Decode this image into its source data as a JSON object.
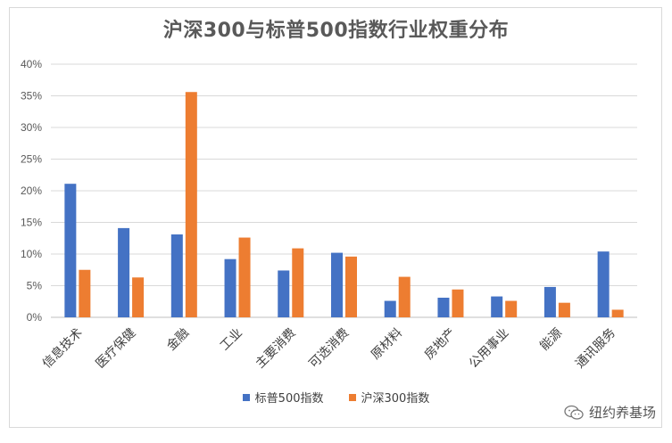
{
  "chart_data": {
    "type": "bar",
    "title": "沪深300与标普500指数行业权重分布",
    "categories": [
      "信息技术",
      "医疗保健",
      "金融",
      "工业",
      "主要消费",
      "可选消费",
      "原材料",
      "房地产",
      "公用事业",
      "能源",
      "通讯服务"
    ],
    "series": [
      {
        "name": "标普500指数",
        "color": "#4472c4",
        "values": [
          21.1,
          14.1,
          13.1,
          9.2,
          7.4,
          10.2,
          2.6,
          3.1,
          3.3,
          4.8,
          10.4
        ]
      },
      {
        "name": "沪深300指数",
        "color": "#ed7d31",
        "values": [
          7.5,
          6.3,
          35.6,
          12.6,
          10.9,
          9.6,
          6.4,
          4.4,
          2.6,
          2.3,
          1.2
        ]
      }
    ],
    "ylim": [
      0,
      40
    ],
    "yticks": [
      "0%",
      "5%",
      "10%",
      "15%",
      "20%",
      "25%",
      "30%",
      "35%",
      "40%"
    ],
    "grid": true,
    "legend_position": "bottom",
    "xlabel": "",
    "ylabel": ""
  },
  "watermark": {
    "text": "纽约养基场",
    "icon": "wechat-icon"
  }
}
